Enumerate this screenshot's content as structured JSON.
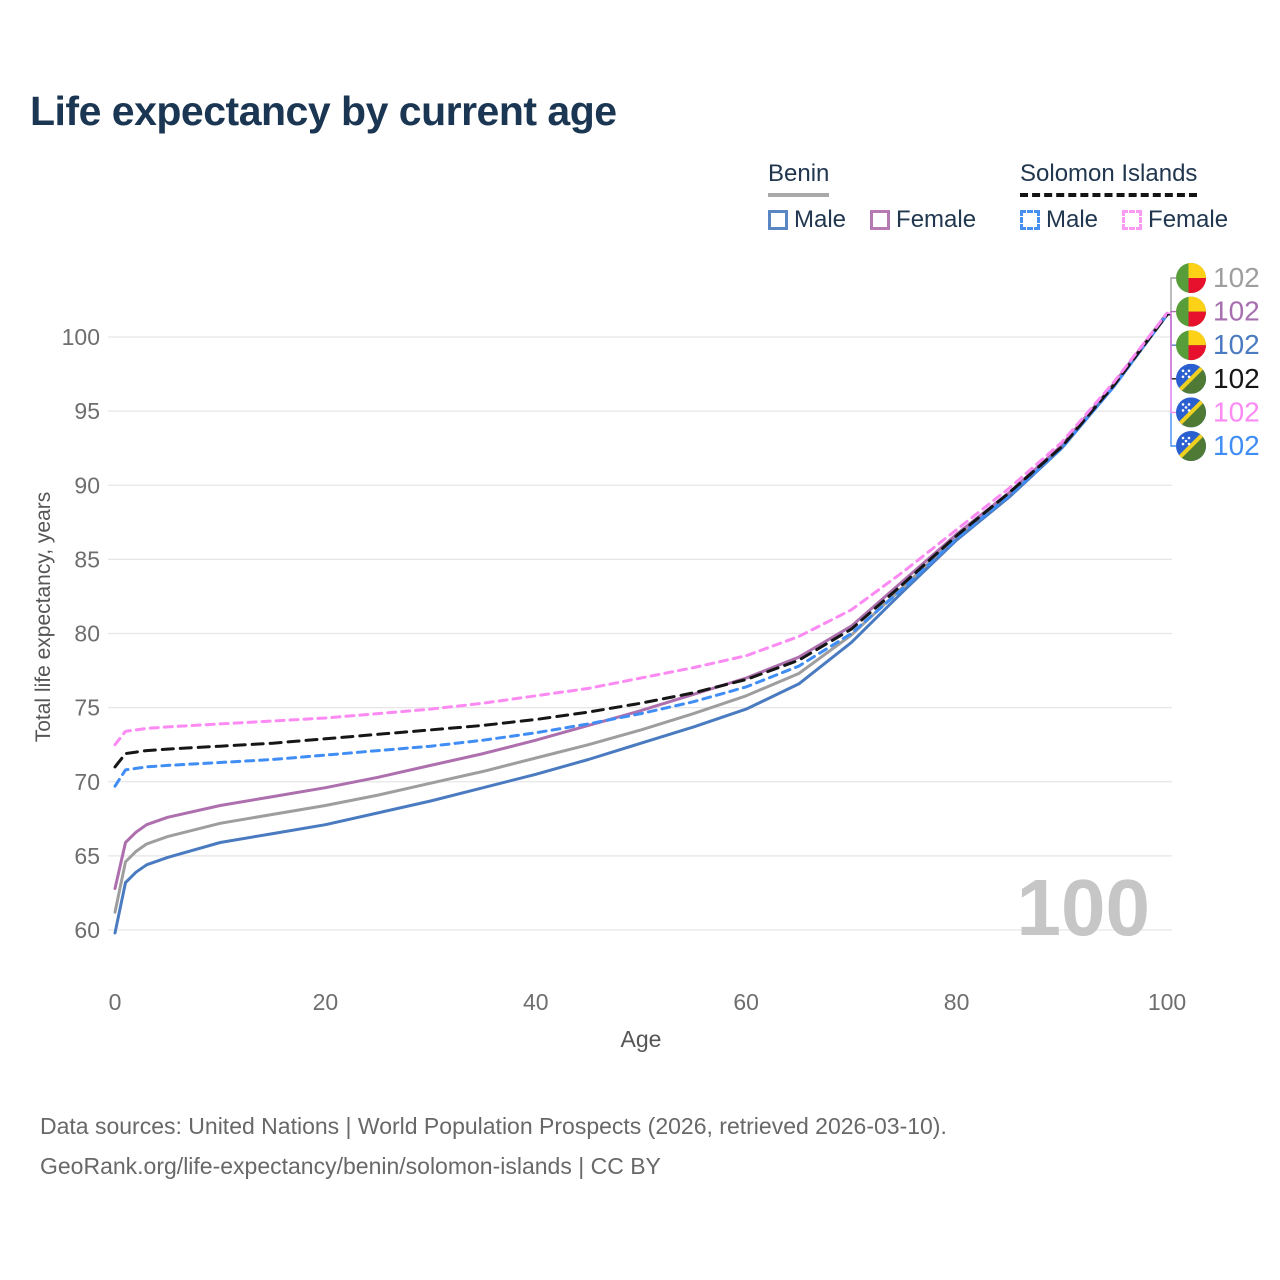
{
  "header": {
    "title": "Life expectancy by current age"
  },
  "legend": {
    "groups": [
      {
        "label": "Benin",
        "underline_color": "#a9a9a9",
        "underline_dashed": false,
        "items": [
          {
            "label": "Male",
            "color": "#5b86c4",
            "dashed": false
          },
          {
            "label": "Female",
            "color": "#b47ab4",
            "dashed": false
          }
        ]
      },
      {
        "label": "Solomon Islands",
        "underline_color": "#141414",
        "underline_dashed": true,
        "items": [
          {
            "label": "Male",
            "color": "#4890f0",
            "dashed": true
          },
          {
            "label": "Female",
            "color": "#fb9af4",
            "dashed": true
          }
        ]
      }
    ]
  },
  "watermark": {
    "text": "100"
  },
  "footer": {
    "line1": "Data sources: United Nations | World Population Prospects (2026, retrieved 2026-03-10).",
    "line2": "GeoRank.org/life-expectancy/benin/solomon-islands | CC BY"
  },
  "chart_data": {
    "type": "line",
    "title": "Life expectancy by current age",
    "xlabel": "Age",
    "ylabel": "Total life expectancy, years",
    "x_ticks": [
      0,
      20,
      40,
      60,
      80,
      100
    ],
    "y_ticks": [
      60,
      65,
      70,
      75,
      80,
      85,
      90,
      95,
      100
    ],
    "xlim": [
      0,
      100
    ],
    "ylim": [
      59,
      103
    ],
    "grid": "horizontal",
    "grid_color": "#e6e6e6",
    "legend_position": "top-right",
    "ages": [
      0,
      1,
      2,
      3,
      5,
      10,
      15,
      20,
      25,
      30,
      35,
      40,
      45,
      50,
      55,
      60,
      65,
      70,
      75,
      80,
      85,
      90,
      95,
      100
    ],
    "series": [
      {
        "id": "benin-total",
        "name": "Benin — Total",
        "flag": "benin",
        "row": 0,
        "color": "#9e9e9e",
        "dash": null,
        "end_label": "102",
        "label_color": "#9e9e9e",
        "values": [
          61.2,
          64.6,
          65.3,
          65.8,
          66.3,
          67.2,
          67.8,
          68.4,
          69.1,
          69.9,
          70.7,
          71.6,
          72.5,
          73.5,
          74.6,
          75.8,
          77.3,
          79.9,
          83.2,
          86.5,
          89.4,
          92.6,
          96.8,
          101.5
        ]
      },
      {
        "id": "benin-female",
        "name": "Benin — Female",
        "flag": "benin",
        "row": 1,
        "color": "#ad6fad",
        "dash": null,
        "end_label": "102",
        "label_color": "#a76fb0",
        "values": [
          62.8,
          65.9,
          66.6,
          67.1,
          67.6,
          68.4,
          69.0,
          69.6,
          70.3,
          71.1,
          71.9,
          72.8,
          73.8,
          74.8,
          75.9,
          77.0,
          78.4,
          80.5,
          83.6,
          86.7,
          89.5,
          92.7,
          96.9,
          101.6
        ]
      },
      {
        "id": "benin-male",
        "name": "Benin — Male",
        "flag": "benin",
        "row": 2,
        "color": "#4a7bc0",
        "dash": null,
        "end_label": "102",
        "label_color": "#4a7bc0",
        "values": [
          59.8,
          63.2,
          63.9,
          64.4,
          64.9,
          65.9,
          66.5,
          67.1,
          67.9,
          68.7,
          69.6,
          70.5,
          71.5,
          72.6,
          73.7,
          74.9,
          76.6,
          79.4,
          82.9,
          86.3,
          89.2,
          92.5,
          96.7,
          101.5
        ]
      },
      {
        "id": "solomon-islands-male",
        "name": "Solomon Islands — Male",
        "flag": "solomon-islands",
        "row": 5,
        "color": "#408ef5",
        "dash": "8,6",
        "end_label": "102",
        "label_color": "#408ef5",
        "values": [
          69.7,
          70.8,
          70.9,
          71.0,
          71.1,
          71.3,
          71.5,
          71.8,
          72.1,
          72.4,
          72.8,
          73.3,
          73.9,
          74.6,
          75.4,
          76.4,
          77.8,
          80.0,
          83.1,
          86.4,
          89.3,
          92.5,
          96.7,
          101.5
        ]
      },
      {
        "id": "solomon-islands-total",
        "name": "Solomon Islands — Total",
        "flag": "solomon-islands",
        "row": 3,
        "color": "#161616",
        "dash": "11,7",
        "end_label": "102",
        "label_color": "#161616",
        "values": [
          71.0,
          71.9,
          72.0,
          72.1,
          72.2,
          72.4,
          72.6,
          72.9,
          73.2,
          73.5,
          73.8,
          74.2,
          74.7,
          75.3,
          76.0,
          76.9,
          78.2,
          80.3,
          83.4,
          86.6,
          89.5,
          92.6,
          96.8,
          101.5
        ]
      },
      {
        "id": "solomon-islands-female",
        "name": "Solomon Islands — Female",
        "flag": "solomon-islands",
        "row": 4,
        "color": "#fb8af3",
        "dash": "8,6",
        "end_label": "102",
        "label_color": "#fb8af3",
        "values": [
          72.5,
          73.4,
          73.5,
          73.6,
          73.7,
          73.9,
          74.1,
          74.3,
          74.6,
          74.9,
          75.3,
          75.8,
          76.3,
          77.0,
          77.7,
          78.5,
          79.8,
          81.6,
          84.2,
          87.0,
          89.8,
          92.9,
          97.0,
          101.6
        ]
      }
    ]
  }
}
